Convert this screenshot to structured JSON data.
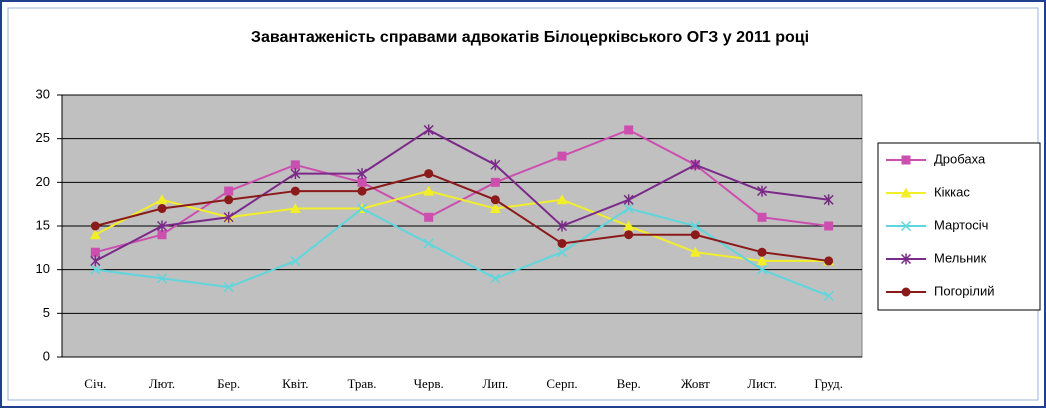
{
  "chart_data": {
    "type": "line",
    "title": "Завантаженість справами адвокатів Білоцерківського ОГЗ у 2011 році",
    "categories": [
      "Січ.",
      "Лют.",
      "Бер.",
      "Квіт.",
      "Трав.",
      "Черв.",
      "Лип.",
      "Серп.",
      "Вер.",
      "Жовт",
      "Лист.",
      "Груд."
    ],
    "series": [
      {
        "name": "Дробаха",
        "color": "#cc4fb0",
        "marker": "square",
        "values": [
          12,
          14,
          19,
          22,
          20,
          16,
          20,
          23,
          26,
          22,
          16,
          15
        ]
      },
      {
        "name": "Кіккас",
        "color": "#f2ee2a",
        "marker": "triangle",
        "values": [
          14,
          18,
          16,
          17,
          17,
          19,
          17,
          18,
          15,
          12,
          11,
          11
        ]
      },
      {
        "name": "Мартосіч",
        "color": "#5fd6dd",
        "marker": "x",
        "values": [
          10,
          9,
          8,
          11,
          17,
          13,
          9,
          12,
          17,
          15,
          10,
          7
        ]
      },
      {
        "name": "Мельник",
        "color": "#7b2a8a",
        "marker": "star",
        "values": [
          11,
          15,
          16,
          21,
          21,
          26,
          22,
          15,
          18,
          22,
          19,
          18
        ]
      },
      {
        "name": "Погорілий",
        "color": "#8b1a1a",
        "marker": "circle",
        "values": [
          15,
          17,
          18,
          19,
          19,
          21,
          18,
          13,
          14,
          14,
          12,
          11
        ]
      }
    ],
    "ylim": [
      0,
      30
    ],
    "yticks": [
      0,
      5,
      10,
      15,
      20,
      25,
      30
    ],
    "grid": true,
    "plot_background": "#c0c0c0",
    "legend": "right"
  }
}
